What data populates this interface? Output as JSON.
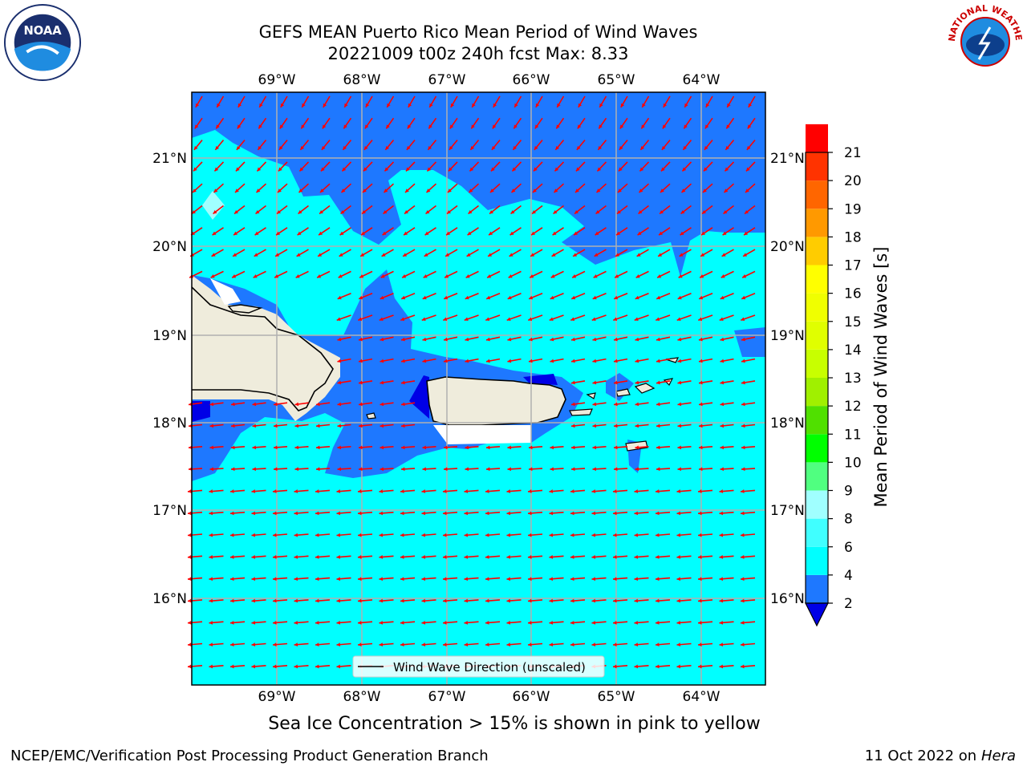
{
  "title_line1": "GEFS MEAN Puerto Rico Mean Period of Wind Waves",
  "title_line2": "20221009 t00z 240h fcst   Max: 8.33",
  "logos": {
    "left": {
      "icon": "noaa-logo",
      "text": "NOAA"
    },
    "right": {
      "icon": "nws-logo",
      "text": "NATIONAL WEATHER SERVICE"
    }
  },
  "map": {
    "lon_labels": [
      "69°W",
      "68°W",
      "67°W",
      "66°W",
      "65°W",
      "64°W"
    ],
    "lat_labels": [
      "21°N",
      "20°N",
      "19°N",
      "18°N",
      "17°N",
      "16°N"
    ],
    "legend_label": "Wind Wave Direction (unscaled)",
    "arrow_icon": "red-arrow-icon",
    "colors": {
      "deep_blue": "#0000e6",
      "mid_blue": "#1e78ff",
      "cyan": "#00ffff",
      "land": "#efecdc",
      "arrow": "#ff0000"
    }
  },
  "colorbar": {
    "label": "Mean Period of Wind Waves [s]",
    "ticks": [
      "2",
      "4",
      "6",
      "8",
      "9",
      "10",
      "11",
      "12",
      "13",
      "14",
      "15",
      "16",
      "17",
      "18",
      "19",
      "20",
      "21"
    ],
    "colors": [
      "#1e78ff",
      "#00ffff",
      "#40ffff",
      "#a0ffff",
      "#50ff80",
      "#00ff00",
      "#50e000",
      "#a0f000",
      "#c8ff00",
      "#e0ff00",
      "#f0ff00",
      "#ffff00",
      "#ffcc00",
      "#ff9900",
      "#ff6600",
      "#ff3300",
      "#ff0000"
    ],
    "under_color": "#0000e6"
  },
  "footer": {
    "ice_note": "Sea Ice Concentration > 15% is shown in pink to yellow",
    "branch": "NCEP/EMC/Verification Post Processing Product Generation Branch",
    "date": "11 Oct 2022 on",
    "host": "Hera"
  }
}
